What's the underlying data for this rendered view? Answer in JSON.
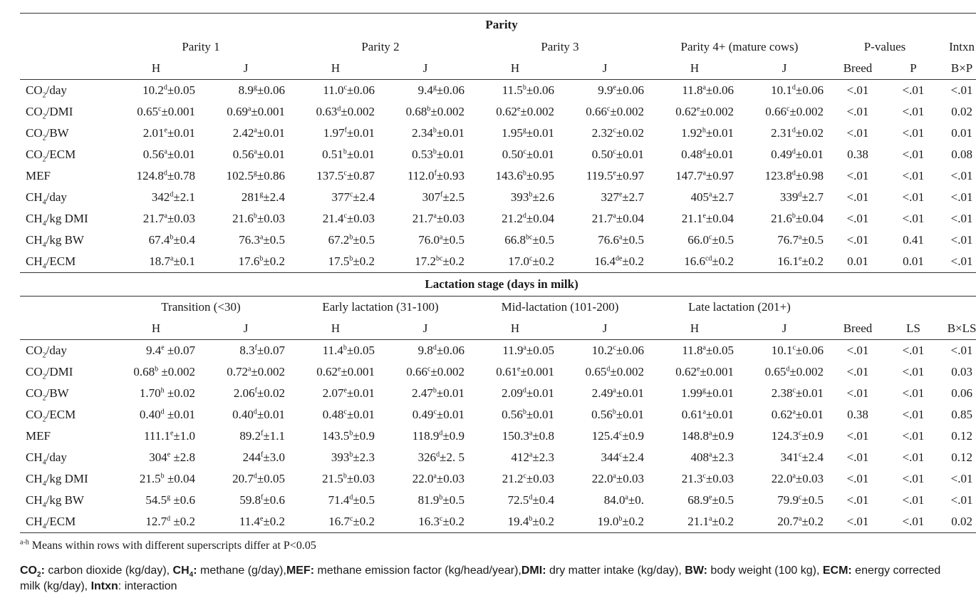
{
  "parity": {
    "title": "Parity",
    "groups": [
      "Parity 1",
      "Parity 2",
      "Parity 3",
      "Parity 4+ (mature cows)"
    ],
    "pvalues_header": "P-values",
    "intxn_header": "Intxn",
    "subheaders": [
      "H",
      "J",
      "H",
      "J",
      "H",
      "J",
      "H",
      "J",
      "Breed",
      "P",
      "B×P"
    ],
    "rows": [
      {
        "label": [
          "CO",
          "2",
          "/day"
        ],
        "cells": [
          [
            "10.2",
            "d",
            "±0.05"
          ],
          [
            "8.9",
            "g",
            "±0.06"
          ],
          [
            "11.0",
            "c",
            "±0.06"
          ],
          [
            "9.4",
            "g",
            "±0.06"
          ],
          [
            "11.5",
            "b",
            "±0.06"
          ],
          [
            "9.9",
            "e",
            "±0.06"
          ],
          [
            "11.8",
            "a",
            "±0.06"
          ],
          [
            "10.1",
            "d",
            "±0.06"
          ]
        ],
        "p": [
          "<.01",
          "<.01",
          "<.01"
        ]
      },
      {
        "label": [
          "CO",
          "2",
          "/DMI"
        ],
        "cells": [
          [
            "0.65",
            "c",
            "±0.001"
          ],
          [
            "0.69",
            "a",
            "±0.001"
          ],
          [
            "0.63",
            "d",
            "±0.002"
          ],
          [
            "0.68",
            "b",
            "±0.002"
          ],
          [
            "0.62",
            "e",
            "±0.002"
          ],
          [
            "0.66",
            "c",
            "±0.002"
          ],
          [
            "0.62",
            "e",
            "±0.002"
          ],
          [
            "0.66",
            "c",
            "±0.002"
          ]
        ],
        "p": [
          "<.01",
          "<.01",
          "0.02"
        ]
      },
      {
        "label": [
          "CO",
          "2",
          "/BW"
        ],
        "cells": [
          [
            "2.01",
            "e",
            "±0.01"
          ],
          [
            "2.42",
            "a",
            "±0.01"
          ],
          [
            "1.97",
            "f",
            "±0.01"
          ],
          [
            "2.34",
            "b",
            "±0.01"
          ],
          [
            "1.95",
            "g",
            "±0.01"
          ],
          [
            "2.32",
            "c",
            "±0.02"
          ],
          [
            "1.92",
            "h",
            "±0.01"
          ],
          [
            "2.31",
            "d",
            "±0.02"
          ]
        ],
        "p": [
          "<.01",
          "<.01",
          "0.01"
        ]
      },
      {
        "label": [
          "CO",
          "2",
          "/ECM"
        ],
        "cells": [
          [
            "0.56",
            "a",
            "±0.01"
          ],
          [
            "0.56",
            "a",
            "±0.01"
          ],
          [
            "0.51",
            "b",
            "±0.01"
          ],
          [
            "0.53",
            "b",
            "±0.01"
          ],
          [
            "0.50",
            "c",
            "±0.01"
          ],
          [
            "0.50",
            "c",
            "±0.01"
          ],
          [
            "0.48",
            "d",
            "±0.01"
          ],
          [
            "0.49",
            "d",
            "±0.01"
          ]
        ],
        "p": [
          "0.38",
          "<.01",
          "0.08"
        ]
      },
      {
        "label": [
          "MEF",
          "",
          ""
        ],
        "cells": [
          [
            "124.8",
            "d",
            "±0.78"
          ],
          [
            "102.5",
            "g",
            "±0.86"
          ],
          [
            "137.5",
            "c",
            "±0.87"
          ],
          [
            "112.0",
            "f",
            "±0.93"
          ],
          [
            "143.6",
            "b",
            "±0.95"
          ],
          [
            "119.5",
            "e",
            "±0.97"
          ],
          [
            "147.7",
            "a",
            "±0.97"
          ],
          [
            "123.8",
            "d",
            "±0.98"
          ]
        ],
        "p": [
          "<.01",
          "<.01",
          "<.01"
        ]
      },
      {
        "label": [
          "CH",
          "4",
          "/day"
        ],
        "cells": [
          [
            "342",
            "d",
            "±2.1"
          ],
          [
            "281",
            "g",
            "±2.4"
          ],
          [
            "377",
            "c",
            "±2.4"
          ],
          [
            "307",
            "f",
            "±2.5"
          ],
          [
            "393",
            "b",
            "±2.6"
          ],
          [
            "327",
            "e",
            "±2.7"
          ],
          [
            "405",
            "a",
            "±2.7"
          ],
          [
            "339",
            "d",
            "±2.7"
          ]
        ],
        "p": [
          "<.01",
          "<.01",
          "<.01"
        ]
      },
      {
        "label": [
          "CH",
          "4",
          "/kg DMI"
        ],
        "cells": [
          [
            "21.7",
            "a",
            "±0.03"
          ],
          [
            "21.6",
            "b",
            "±0.03"
          ],
          [
            "21.4",
            "c",
            "±0.03"
          ],
          [
            "21.7",
            "a",
            "±0.03"
          ],
          [
            "21.2",
            "d",
            "±0.04"
          ],
          [
            "21.7",
            "a",
            "±0.04"
          ],
          [
            "21.1",
            "e",
            "±0.04"
          ],
          [
            "21.6",
            "b",
            "±0.04"
          ]
        ],
        "p": [
          "<.01",
          "<.01",
          "<.01"
        ]
      },
      {
        "label": [
          "CH",
          "4",
          "/kg BW"
        ],
        "cells": [
          [
            "67.4",
            "b",
            "±0.4"
          ],
          [
            "76.3",
            "a",
            "±0.5"
          ],
          [
            "67.2",
            "b",
            "±0.5"
          ],
          [
            "76.0",
            "a",
            "±0.5"
          ],
          [
            "66.8",
            "bc",
            "±0.5"
          ],
          [
            "76.6",
            "a",
            "±0.5"
          ],
          [
            "66.0",
            "c",
            "±0.5"
          ],
          [
            "76.7",
            "a",
            "±0.5"
          ]
        ],
        "p": [
          "<.01",
          "0.41",
          "<.01"
        ]
      },
      {
        "label": [
          "CH",
          "4",
          "/ECM"
        ],
        "cells": [
          [
            "18.7",
            "a",
            "±0.1"
          ],
          [
            "17.6",
            "b",
            "±0.2"
          ],
          [
            "17.5",
            "b",
            "±0.2"
          ],
          [
            "17.2",
            "bc",
            "±0.2"
          ],
          [
            "17.0",
            "c",
            "±0.2"
          ],
          [
            "16.4",
            "de",
            "±0.2"
          ],
          [
            "16.6",
            "cd",
            "±0.2"
          ],
          [
            "16.1",
            "e",
            "±0.2"
          ]
        ],
        "p": [
          "0.01",
          "0.01",
          "<.01"
        ]
      }
    ]
  },
  "lactation": {
    "title": "Lactation stage (days in milk)",
    "groups": [
      "Transition (<30)",
      "Early lactation (31-100)",
      "Mid-lactation (101-200)",
      "Late lactation (201+)"
    ],
    "subheaders": [
      "H",
      "J",
      "H",
      "J",
      "H",
      "J",
      "H",
      "J",
      "Breed",
      "LS",
      "B×LS"
    ],
    "rows": [
      {
        "label": [
          "CO",
          "2",
          "/day"
        ],
        "cells": [
          [
            "9.4",
            "e",
            " ±0.07"
          ],
          [
            "8.3",
            "f",
            "±0.07"
          ],
          [
            "11.4",
            "b",
            "±0.05"
          ],
          [
            "9.8",
            "d",
            "±0.06"
          ],
          [
            "11.9",
            "a",
            "±0.05"
          ],
          [
            "10.2",
            "c",
            "±0.06"
          ],
          [
            "11.8",
            "a",
            "±0.05"
          ],
          [
            "10.1",
            "c",
            "±0.06"
          ]
        ],
        "p": [
          "<.01",
          "<.01",
          "<.01"
        ]
      },
      {
        "label": [
          "CO",
          "2",
          "/DMI"
        ],
        "cells": [
          [
            "0.68",
            "b",
            " ±0.002"
          ],
          [
            "0.72",
            "a",
            "±0.002"
          ],
          [
            "0.62",
            "e",
            "±0.001"
          ],
          [
            "0.66",
            "c",
            "±0.002"
          ],
          [
            "0.61",
            "e",
            "±0.001"
          ],
          [
            "0.65",
            "d",
            "±0.002"
          ],
          [
            "0.62",
            "e",
            "±0.001"
          ],
          [
            "0.65",
            "d",
            "±0.002"
          ]
        ],
        "p": [
          "<.01",
          "<.01",
          "0.03"
        ]
      },
      {
        "label": [
          "CO",
          "2",
          "/BW"
        ],
        "cells": [
          [
            "1.70",
            "h",
            " ±0.02"
          ],
          [
            "2.06",
            "f",
            "±0.02"
          ],
          [
            "2.07",
            "e",
            "±0.01"
          ],
          [
            "2.47",
            "b",
            "±0.01"
          ],
          [
            "2.09",
            "d",
            "±0.01"
          ],
          [
            "2.49",
            "a",
            "±0.01"
          ],
          [
            "1.99",
            "g",
            "±0.01"
          ],
          [
            "2.38",
            "c",
            "±0.01"
          ]
        ],
        "p": [
          "<.01",
          "<.01",
          "0.06"
        ]
      },
      {
        "label": [
          "CO",
          "2",
          "/ECM"
        ],
        "cells": [
          [
            "0.40",
            "d",
            " ±0.01"
          ],
          [
            "0.40",
            "d",
            "±0.01"
          ],
          [
            "0.48",
            "c",
            "±0.01"
          ],
          [
            "0.49",
            "c",
            "±0.01"
          ],
          [
            "0.56",
            "b",
            "±0.01"
          ],
          [
            "0.56",
            "b",
            "±0.01"
          ],
          [
            "0.61",
            "a",
            "±0.01"
          ],
          [
            "0.62",
            "a",
            "±0.01"
          ]
        ],
        "p": [
          "0.38",
          "<.01",
          "0.85"
        ]
      },
      {
        "label": [
          "MEF",
          "",
          ""
        ],
        "cells": [
          [
            "111.1",
            "e",
            "±1.0"
          ],
          [
            "89.2",
            "f",
            "±1.1"
          ],
          [
            "143.5",
            "b",
            "±0.9"
          ],
          [
            "118.9",
            "d",
            "±0.9"
          ],
          [
            "150.3",
            "a",
            "±0.8"
          ],
          [
            "125.4",
            "c",
            "±0.9"
          ],
          [
            "148.8",
            "a",
            "±0.9"
          ],
          [
            "124.3",
            "c",
            "±0.9"
          ]
        ],
        "p": [
          "<.01",
          "<.01",
          "0.12"
        ]
      },
      {
        "label": [
          "CH",
          "4",
          "/day"
        ],
        "cells": [
          [
            "304",
            "e",
            " ±2.8"
          ],
          [
            "244",
            "f",
            "±3.0"
          ],
          [
            "393",
            "b",
            "±2.3"
          ],
          [
            "326",
            "d",
            "±2. 5"
          ],
          [
            "412",
            "a",
            "±2.3"
          ],
          [
            "344",
            "c",
            "±2.4"
          ],
          [
            "408",
            "a",
            "±2.3"
          ],
          [
            "341",
            "c",
            "±2.4"
          ]
        ],
        "p": [
          "<.01",
          "<.01",
          "0.12"
        ]
      },
      {
        "label": [
          "CH",
          "4",
          "/kg DMI"
        ],
        "cells": [
          [
            "21.5",
            "b",
            " ±0.04"
          ],
          [
            "20.7",
            "d",
            "±0.05"
          ],
          [
            "21.5",
            "b",
            "±0.03"
          ],
          [
            "22.0",
            "a",
            "±0.03"
          ],
          [
            "21.2",
            "c",
            "±0.03"
          ],
          [
            "22.0",
            "a",
            "±0.03"
          ],
          [
            "21.3",
            "c",
            "±0.03"
          ],
          [
            "22.0",
            "a",
            "±0.03"
          ]
        ],
        "p": [
          "<.01",
          "<.01",
          "<.01"
        ]
      },
      {
        "label": [
          "CH",
          "4",
          "/kg BW"
        ],
        "cells": [
          [
            "54.5",
            "g",
            " ±0.6"
          ],
          [
            "59.8",
            "f",
            "±0.6"
          ],
          [
            "71.4",
            "d",
            "±0.5"
          ],
          [
            "81.9",
            "b",
            "±0.5"
          ],
          [
            "72.5",
            "d",
            "±0.4"
          ],
          [
            "84.0",
            "a",
            "±0."
          ],
          [
            "68.9",
            "e",
            "±0.5"
          ],
          [
            "79.9",
            "c",
            "±0.5"
          ]
        ],
        "p": [
          "<.01",
          "<.01",
          "<.01"
        ]
      },
      {
        "label": [
          "CH",
          "4",
          "/ECM"
        ],
        "cells": [
          [
            "12.7",
            "d",
            " ±0.2"
          ],
          [
            "11.4",
            "e",
            "±0.2"
          ],
          [
            "16.7",
            "c",
            "±0.2"
          ],
          [
            "16.3",
            "c",
            "±0.2"
          ],
          [
            "19.4",
            "b",
            "±0.2"
          ],
          [
            "19.0",
            "b",
            "±0.2"
          ],
          [
            "21.1",
            "a",
            "±0.2"
          ],
          [
            "20.7",
            "a",
            "±0.2"
          ]
        ],
        "p": [
          "<.01",
          "<.01",
          "0.02"
        ]
      }
    ]
  },
  "footnote": {
    "sup": "a-h",
    "text": " Means within rows with different superscripts differ at P<0.05"
  },
  "abbreviations": [
    {
      "term": [
        "CO",
        "2",
        ":"
      ],
      "def": " carbon dioxide (kg/day), "
    },
    {
      "term": [
        "CH",
        "4",
        ":"
      ],
      "def": " methane (g/day),"
    },
    {
      "term": [
        "MEF:",
        "",
        ""
      ],
      "def": " methane emission factor (kg/head/year),"
    },
    {
      "term": [
        "DMI:",
        "",
        ""
      ],
      "def": " dry matter intake (kg/day), "
    },
    {
      "term": [
        "BW:",
        "",
        ""
      ],
      "def": " body weight (100 kg), "
    },
    {
      "term": [
        "ECM:",
        "",
        ""
      ],
      "def": " energy corrected milk (kg/day), "
    },
    {
      "term": [
        "Intxn",
        "",
        ""
      ],
      "def": ": interaction"
    }
  ]
}
